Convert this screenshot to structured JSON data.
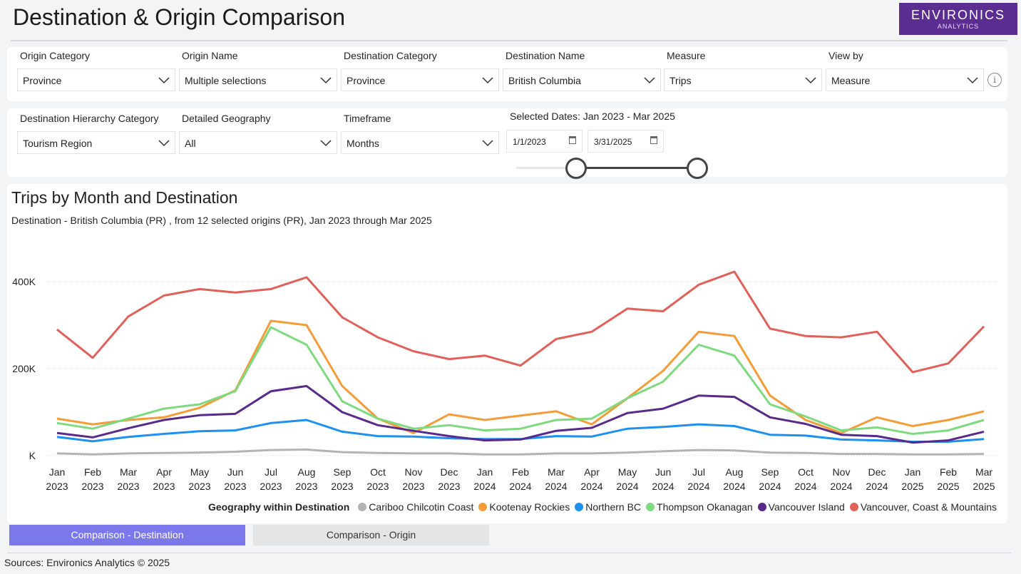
{
  "header": {
    "title": "Destination & Origin Comparison",
    "logo_main": "ENVIRONICS",
    "logo_sub": "ANALYTICS"
  },
  "filters_row1": [
    {
      "label": "Origin Category",
      "value": "Province"
    },
    {
      "label": "Origin Name",
      "value": "Multiple selections"
    },
    {
      "label": "Destination Category",
      "value": "Province"
    },
    {
      "label": "Destination Name",
      "value": "British Columbia"
    },
    {
      "label": "Measure",
      "value": "Trips"
    },
    {
      "label": "View by",
      "value": "Measure"
    }
  ],
  "filters_row2": [
    {
      "label": "Destination Hierarchy Category",
      "value": "Tourism Region"
    },
    {
      "label": "Detailed Geography",
      "value": "All"
    },
    {
      "label": "Timeframe",
      "value": "Months"
    }
  ],
  "info_icon_glyph": "i",
  "dates": {
    "label": "Selected Dates: Jan 2023 - Mar 2025",
    "start": "1/1/2023",
    "end": "3/31/2025"
  },
  "chart_data": {
    "type": "line",
    "title": "Trips by Month and Destination",
    "subtitle": "Destination - British Columbia (PR) , from 12 selected origins (PR), Jan 2023 through Mar 2025",
    "xlabel": "",
    "ylabel": "",
    "ylim": [
      0,
      450000
    ],
    "yticks": [
      {
        "value": 0,
        "label": "K"
      },
      {
        "value": 200000,
        "label": "200K"
      },
      {
        "value": 400000,
        "label": "400K"
      }
    ],
    "categories": [
      [
        "Jan",
        "2023"
      ],
      [
        "Feb",
        "2023"
      ],
      [
        "Mar",
        "2023"
      ],
      [
        "Apr",
        "2023"
      ],
      [
        "May",
        "2023"
      ],
      [
        "Jun",
        "2023"
      ],
      [
        "Jul",
        "2023"
      ],
      [
        "Aug",
        "2023"
      ],
      [
        "Sep",
        "2023"
      ],
      [
        "Oct",
        "2023"
      ],
      [
        "Nov",
        "2023"
      ],
      [
        "Dec",
        "2023"
      ],
      [
        "Jan",
        "2024"
      ],
      [
        "Feb",
        "2024"
      ],
      [
        "Mar",
        "2024"
      ],
      [
        "Apr",
        "2024"
      ],
      [
        "May",
        "2024"
      ],
      [
        "Jun",
        "2024"
      ],
      [
        "Jul",
        "2024"
      ],
      [
        "Aug",
        "2024"
      ],
      [
        "Sep",
        "2024"
      ],
      [
        "Oct",
        "2024"
      ],
      [
        "Nov",
        "2024"
      ],
      [
        "Dec",
        "2024"
      ],
      [
        "Jan",
        "2025"
      ],
      [
        "Feb",
        "2025"
      ],
      [
        "Mar",
        "2025"
      ]
    ],
    "legend_title": "Geography within Destination",
    "series": [
      {
        "name": "Cariboo Chilcotin Coast",
        "color": "#b3b3b3",
        "values": [
          5000,
          3000,
          5000,
          6000,
          7000,
          9000,
          13000,
          14000,
          8000,
          6000,
          5000,
          5000,
          3000,
          3000,
          5000,
          5000,
          7000,
          10000,
          13000,
          12000,
          7000,
          6000,
          4000,
          4000,
          3000,
          3000,
          4000
        ]
      },
      {
        "name": "Kootenay Rockies",
        "color": "#f39c38",
        "values": [
          85000,
          72000,
          82000,
          88000,
          110000,
          150000,
          310000,
          300000,
          160000,
          85000,
          52000,
          95000,
          82000,
          92000,
          102000,
          72000,
          132000,
          195000,
          285000,
          275000,
          138000,
          82000,
          52000,
          88000,
          68000,
          82000,
          102000
        ]
      },
      {
        "name": "Northern BC",
        "color": "#1e90f0",
        "values": [
          43000,
          33000,
          43000,
          50000,
          56000,
          58000,
          75000,
          82000,
          55000,
          45000,
          44000,
          40000,
          38000,
          38000,
          45000,
          44000,
          62000,
          66000,
          72000,
          68000,
          48000,
          46000,
          37000,
          35000,
          32000,
          32000,
          38000
        ]
      },
      {
        "name": "Thompson Okanagan",
        "color": "#7fd97f",
        "values": [
          75000,
          62000,
          85000,
          108000,
          118000,
          148000,
          295000,
          255000,
          125000,
          85000,
          62000,
          70000,
          58000,
          62000,
          82000,
          85000,
          132000,
          170000,
          255000,
          230000,
          118000,
          90000,
          58000,
          65000,
          50000,
          58000,
          82000
        ]
      },
      {
        "name": "Vancouver Island",
        "color": "#5a2a8a",
        "values": [
          52000,
          42000,
          63000,
          82000,
          93000,
          96000,
          148000,
          160000,
          100000,
          70000,
          57000,
          45000,
          35000,
          37000,
          57000,
          64000,
          98000,
          108000,
          138000,
          135000,
          88000,
          73000,
          48000,
          45000,
          30000,
          35000,
          55000
        ]
      },
      {
        "name": "Vancouver, Coast & Mountains",
        "color": "#e0605a",
        "values": [
          290000,
          225000,
          320000,
          368000,
          383000,
          375000,
          383000,
          410000,
          318000,
          272000,
          240000,
          222000,
          230000,
          207000,
          268000,
          285000,
          338000,
          332000,
          393000,
          423000,
          292000,
          275000,
          272000,
          285000,
          192000,
          212000,
          297000
        ]
      }
    ]
  },
  "tabs": {
    "active": "Comparison - Destination",
    "inactive": "Comparison - Origin"
  },
  "footer": "Sources: Environics Analytics © 2025"
}
